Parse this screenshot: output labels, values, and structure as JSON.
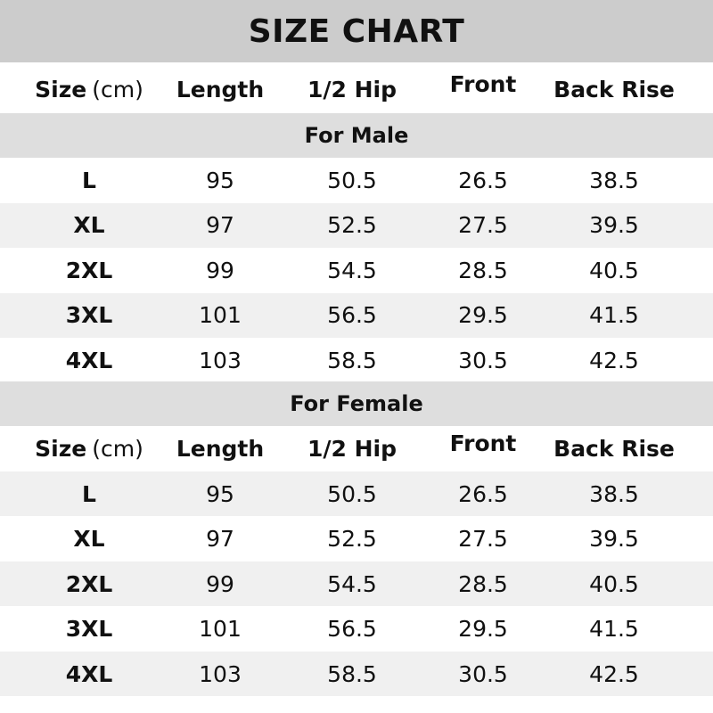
{
  "title": "SIZE CHART",
  "header": {
    "size": "Size",
    "unit": "(cm)",
    "columns": [
      "Length",
      "1/2 Hip",
      "Front",
      "Back Rise"
    ]
  },
  "colors": {
    "title_band": "#cccccc",
    "section_band": "#dedede",
    "alt_row": "#f0f0f0"
  },
  "sections": [
    {
      "label": "For Male",
      "rows": [
        [
          "L",
          "95",
          "50.5",
          "26.5",
          "38.5"
        ],
        [
          "XL",
          "97",
          "52.5",
          "27.5",
          "39.5"
        ],
        [
          "2XL",
          "99",
          "54.5",
          "28.5",
          "40.5"
        ],
        [
          "3XL",
          "101",
          "56.5",
          "29.5",
          "41.5"
        ],
        [
          "4XL",
          "103",
          "58.5",
          "30.5",
          "42.5"
        ]
      ]
    },
    {
      "label": "For Female",
      "rows": [
        [
          "L",
          "95",
          "50.5",
          "26.5",
          "38.5"
        ],
        [
          "XL",
          "97",
          "52.5",
          "27.5",
          "39.5"
        ],
        [
          "2XL",
          "99",
          "54.5",
          "28.5",
          "40.5"
        ],
        [
          "3XL",
          "101",
          "56.5",
          "29.5",
          "41.5"
        ],
        [
          "4XL",
          "103",
          "58.5",
          "30.5",
          "42.5"
        ]
      ]
    }
  ]
}
